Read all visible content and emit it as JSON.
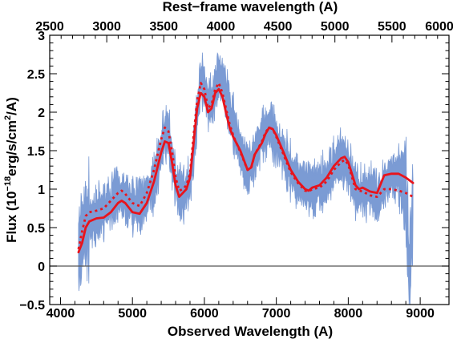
{
  "chart_data": {
    "type": "line",
    "xlabel": "Observed Wavelength (A)",
    "x2label": "Rest−frame wavelength (A)",
    "ylabel_pre": "Flux (10",
    "ylabel_sup": "−18",
    "ylabel_mid": "erg/s/cm",
    "ylabel_sup2": "2",
    "ylabel_post": "/A)",
    "xlim": [
      3850,
      9400
    ],
    "ylim": [
      -0.5,
      3.0
    ],
    "rest_frame_xlim": [
      2500,
      6000
    ],
    "x_ticks": [
      4000,
      5000,
      6000,
      7000,
      8000,
      9000
    ],
    "x_ticklabels": [
      "4000",
      "5000",
      "6000",
      "7000",
      "8000",
      "9000"
    ],
    "x2_ticks": [
      2500,
      3000,
      3500,
      4000,
      4500,
      5000,
      5500,
      6000
    ],
    "x2_ticklabels": [
      "2500",
      "3000",
      "3500",
      "4000",
      "4500",
      "5000",
      "5500",
      "6000"
    ],
    "y_ticks": [
      -0.5,
      0,
      0.5,
      1,
      1.5,
      2,
      2.5,
      3
    ],
    "y_ticklabels": [
      "−0.5",
      "0",
      "0.5",
      "1",
      "1.5",
      "2",
      "2.5",
      "3"
    ],
    "zero_line": 0,
    "colors": {
      "observed": "#7b9bd4",
      "model": "#e8141c",
      "axes": "#000000",
      "zero_line": "#555555"
    },
    "series": [
      {
        "style": "noisy-filled",
        "color": "#7b9bd4",
        "x": [
          4250,
          4300,
          4400,
          4500,
          4600,
          4700,
          4800,
          4900,
          5000,
          5100,
          5200,
          5300,
          5400,
          5450,
          5500,
          5550,
          5600,
          5650,
          5700,
          5750,
          5800,
          5850,
          5900,
          5950,
          6000,
          6050,
          6100,
          6150,
          6200,
          6250,
          6300,
          6350,
          6400,
          6500,
          6600,
          6700,
          6800,
          6900,
          7000,
          7100,
          7200,
          7300,
          7400,
          7500,
          7600,
          7700,
          7800,
          7900,
          8000,
          8100,
          8200,
          8300,
          8400,
          8500,
          8600,
          8700,
          8800,
          8850,
          8900
        ],
        "y": [
          0.2,
          0.4,
          0.62,
          0.65,
          0.72,
          0.8,
          0.95,
          0.9,
          0.8,
          0.78,
          0.92,
          1.1,
          1.5,
          1.75,
          1.7,
          1.4,
          1.1,
          0.95,
          0.9,
          1.0,
          1.05,
          1.5,
          2.0,
          2.45,
          2.35,
          2.15,
          2.1,
          2.3,
          2.5,
          2.45,
          2.25,
          2.0,
          1.85,
          1.5,
          1.25,
          1.45,
          1.7,
          1.8,
          1.65,
          1.45,
          1.25,
          1.1,
          1.05,
          1.0,
          1.05,
          1.1,
          1.3,
          1.4,
          1.3,
          1.0,
          0.95,
          1.0,
          0.85,
          1.05,
          1.15,
          1.2,
          0.95,
          -0.2,
          0.9
        ]
      },
      {
        "style": "solid",
        "color": "#e8141c",
        "x": [
          4250,
          4300,
          4350,
          4400,
          4500,
          4600,
          4700,
          4800,
          4850,
          4900,
          5000,
          5100,
          5200,
          5300,
          5400,
          5450,
          5500,
          5550,
          5600,
          5650,
          5700,
          5750,
          5800,
          5850,
          5900,
          5950,
          6000,
          6050,
          6100,
          6150,
          6200,
          6250,
          6300,
          6350,
          6400,
          6500,
          6600,
          6650,
          6700,
          6800,
          6850,
          6900,
          6950,
          7000,
          7100,
          7200,
          7300,
          7400,
          7450,
          7500,
          7600,
          7700,
          7800,
          7900,
          7950,
          8000,
          8100,
          8150,
          8200,
          8300,
          8400,
          8500,
          8600,
          8700,
          8800,
          8900
        ],
        "y": [
          0.18,
          0.3,
          0.5,
          0.58,
          0.62,
          0.63,
          0.7,
          0.82,
          0.85,
          0.82,
          0.7,
          0.68,
          0.82,
          1.1,
          1.48,
          1.62,
          1.6,
          1.35,
          1.05,
          0.9,
          0.95,
          1.0,
          1.15,
          1.6,
          2.05,
          2.25,
          2.2,
          2.0,
          2.05,
          2.25,
          2.3,
          2.2,
          2.0,
          1.8,
          1.68,
          1.5,
          1.25,
          1.28,
          1.45,
          1.6,
          1.72,
          1.8,
          1.78,
          1.7,
          1.48,
          1.25,
          1.1,
          1.0,
          0.98,
          1.02,
          1.05,
          1.15,
          1.3,
          1.4,
          1.42,
          1.35,
          1.05,
          1.0,
          1.02,
          0.97,
          0.95,
          1.18,
          1.2,
          1.2,
          1.15,
          1.08
        ]
      },
      {
        "style": "dotted",
        "color": "#e8141c",
        "x": [
          4250,
          4300,
          4350,
          4400,
          4500,
          4600,
          4700,
          4800,
          4850,
          4900,
          5000,
          5100,
          5200,
          5300,
          5400,
          5450,
          5500,
          5550,
          5600,
          5650,
          5700,
          5750,
          5800,
          5850,
          5900,
          5950,
          6000,
          6050,
          6100,
          6150,
          6200,
          6250,
          6300,
          6350,
          6400,
          6500,
          6600,
          6650,
          6700,
          6800,
          6850,
          6900,
          6950,
          7000,
          7100,
          7200,
          7300,
          7400,
          7450,
          7500,
          7600,
          7700,
          7800,
          7900,
          7950,
          8000,
          8100,
          8150,
          8200,
          8300,
          8400,
          8500,
          8600,
          8700,
          8800,
          8900
        ],
        "y": [
          0.22,
          0.45,
          0.65,
          0.7,
          0.72,
          0.75,
          0.85,
          0.95,
          0.98,
          0.94,
          0.82,
          0.78,
          0.95,
          1.25,
          1.65,
          1.8,
          1.75,
          1.5,
          1.15,
          0.98,
          1.0,
          1.05,
          1.2,
          1.7,
          2.15,
          2.38,
          2.3,
          2.05,
          2.1,
          2.3,
          2.38,
          2.25,
          2.05,
          1.85,
          1.7,
          1.48,
          1.25,
          1.27,
          1.45,
          1.62,
          1.74,
          1.8,
          1.78,
          1.68,
          1.45,
          1.22,
          1.08,
          0.98,
          0.97,
          1.0,
          1.02,
          1.1,
          1.25,
          1.35,
          1.38,
          1.32,
          1.0,
          0.98,
          0.97,
          0.92,
          0.9,
          1.0,
          1.0,
          0.98,
          0.95,
          0.9
        ]
      }
    ]
  }
}
